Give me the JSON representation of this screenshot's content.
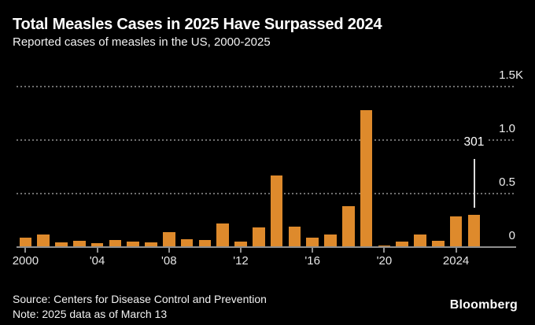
{
  "header": {
    "title": "Total Measles Cases in 2025 Have Surpassed 2024",
    "subtitle": "Reported cases of measles in the US, 2000-2025"
  },
  "footer": {
    "source": "Source: Centers for Disease Control and Prevention",
    "note": "Note: 2025 data as of March 13",
    "logo": "Bloomberg"
  },
  "colors": {
    "background": "#000000",
    "bar": "#DE8A2C",
    "axis": "#8f8f8f",
    "grid": "#6f6f6f",
    "text": "#ffffff",
    "annotation_line": "#dcdcdc"
  },
  "chart_data": {
    "type": "bar",
    "title": "Total Measles Cases in 2025 Have Surpassed 2024",
    "subtitle": "Reported cases of measles in the US, 2000-2025",
    "xlabel": "",
    "ylabel": "",
    "ylim": [
      0,
      1500
    ],
    "grid": "horizontal-dotted",
    "legend_position": "none",
    "categories": [
      2000,
      2001,
      2002,
      2003,
      2004,
      2005,
      2006,
      2007,
      2008,
      2009,
      2010,
      2011,
      2012,
      2013,
      2014,
      2015,
      2016,
      2017,
      2018,
      2019,
      2020,
      2021,
      2022,
      2023,
      2024,
      2025
    ],
    "values": [
      86,
      116,
      44,
      56,
      37,
      66,
      55,
      43,
      140,
      71,
      63,
      220,
      55,
      187,
      667,
      188,
      86,
      120,
      381,
      1274,
      13,
      49,
      121,
      59,
      285,
      301
    ],
    "yticks": [
      {
        "value": 0,
        "num": "0",
        "suffix": ""
      },
      {
        "value": 500,
        "num": "0.5",
        "suffix": ""
      },
      {
        "value": 1000,
        "num": "1.0",
        "suffix": ""
      },
      {
        "value": 1500,
        "num": "1.5",
        "suffix": "K"
      }
    ],
    "xticks": [
      {
        "year": 2000,
        "label": "2000"
      },
      {
        "year": 2004,
        "label": "'04"
      },
      {
        "year": 2008,
        "label": "'08"
      },
      {
        "year": 2012,
        "label": "'12"
      },
      {
        "year": 2016,
        "label": "'16"
      },
      {
        "year": 2020,
        "label": "'20"
      },
      {
        "year": 2024,
        "label": "2024"
      }
    ],
    "annotation": {
      "text": "301",
      "year": 2025
    }
  }
}
